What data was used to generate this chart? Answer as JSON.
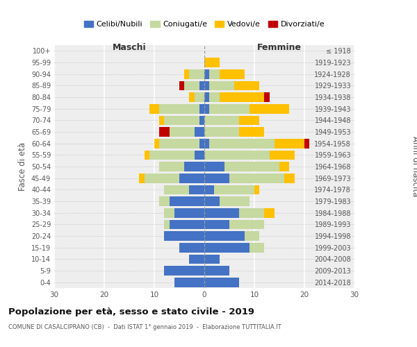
{
  "age_groups": [
    "0-4",
    "5-9",
    "10-14",
    "15-19",
    "20-24",
    "25-29",
    "30-34",
    "35-39",
    "40-44",
    "45-49",
    "50-54",
    "55-59",
    "60-64",
    "65-69",
    "70-74",
    "75-79",
    "80-84",
    "85-89",
    "90-94",
    "95-99",
    "100+"
  ],
  "birth_years": [
    "2014-2018",
    "2009-2013",
    "2004-2008",
    "1999-2003",
    "1994-1998",
    "1989-1993",
    "1984-1988",
    "1979-1983",
    "1974-1978",
    "1969-1973",
    "1964-1968",
    "1959-1963",
    "1954-1958",
    "1949-1953",
    "1944-1948",
    "1939-1943",
    "1934-1938",
    "1929-1933",
    "1924-1928",
    "1919-1923",
    "≤ 1918"
  ],
  "males": {
    "celibi": [
      6,
      8,
      3,
      5,
      8,
      7,
      6,
      7,
      3,
      5,
      4,
      2,
      1,
      2,
      1,
      1,
      0,
      1,
      0,
      0,
      0
    ],
    "coniugati": [
      0,
      0,
      0,
      0,
      0,
      1,
      2,
      2,
      5,
      7,
      5,
      9,
      8,
      5,
      7,
      8,
      2,
      3,
      3,
      0,
      0
    ],
    "vedovi": [
      0,
      0,
      0,
      0,
      0,
      0,
      0,
      0,
      0,
      1,
      0,
      1,
      1,
      0,
      1,
      2,
      1,
      0,
      1,
      0,
      0
    ],
    "divorziati": [
      0,
      0,
      0,
      0,
      0,
      0,
      0,
      0,
      0,
      0,
      0,
      0,
      0,
      2,
      0,
      0,
      0,
      1,
      0,
      0,
      0
    ]
  },
  "females": {
    "nubili": [
      7,
      5,
      3,
      9,
      8,
      5,
      7,
      3,
      2,
      5,
      4,
      0,
      1,
      0,
      0,
      1,
      1,
      1,
      1,
      0,
      0
    ],
    "coniugate": [
      0,
      0,
      0,
      3,
      3,
      7,
      5,
      6,
      8,
      11,
      11,
      13,
      13,
      7,
      7,
      8,
      2,
      5,
      2,
      0,
      0
    ],
    "vedove": [
      0,
      0,
      0,
      0,
      0,
      0,
      2,
      0,
      1,
      2,
      2,
      5,
      6,
      5,
      4,
      8,
      9,
      5,
      5,
      3,
      0
    ],
    "divorziate": [
      0,
      0,
      0,
      0,
      0,
      0,
      0,
      0,
      0,
      0,
      0,
      0,
      1,
      0,
      0,
      0,
      1,
      0,
      0,
      0,
      0
    ]
  },
  "color_celibi": "#4472c4",
  "color_coniugati": "#c5d9a0",
  "color_vedovi": "#ffc000",
  "color_divorziati": "#c00000",
  "title": "Popolazione per età, sesso e stato civile - 2019",
  "subtitle": "COMUNE DI CASALCIPRANO (CB)  -  Dati ISTAT 1° gennaio 2019  -  Elaborazione TUTTITALIA.IT",
  "xlabel_left": "Maschi",
  "xlabel_right": "Femmine",
  "ylabel_left": "Fasce di età",
  "ylabel_right": "Anni di nascita",
  "xlim": 30,
  "legend_labels": [
    "Celibi/Nubili",
    "Coniugati/e",
    "Vedovi/e",
    "Divorziati/e"
  ]
}
